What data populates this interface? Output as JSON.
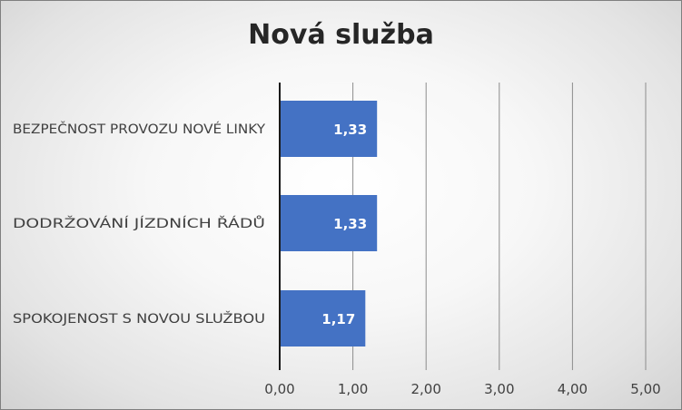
{
  "chart_data": {
    "type": "bar",
    "orientation": "horizontal",
    "title": "Nová služba",
    "categories": [
      "BEZPEČNOST PROVOZU NOVÉ LINKY",
      "DODRŽOVÁNÍ JÍZDNÍCH ŘÁDŮ",
      "SPOKOJENOST S NOVOU SLUŽBOU"
    ],
    "values": [
      1.33,
      1.33,
      1.17
    ],
    "value_labels": [
      "1,33",
      "1,33",
      "1,17"
    ],
    "x_ticks": [
      0,
      1,
      2,
      3,
      4,
      5
    ],
    "x_tick_labels": [
      "0,00",
      "1,00",
      "2,00",
      "3,00",
      "4,00",
      "5,00"
    ],
    "xlim": [
      0,
      5
    ],
    "grid": "vertical",
    "legend": "none",
    "colors": {
      "bar": "#4472c4",
      "grid": "#8c8c8c",
      "axis": "#1a1a1a",
      "text": "#404040",
      "data_label": "#ffffff"
    }
  }
}
